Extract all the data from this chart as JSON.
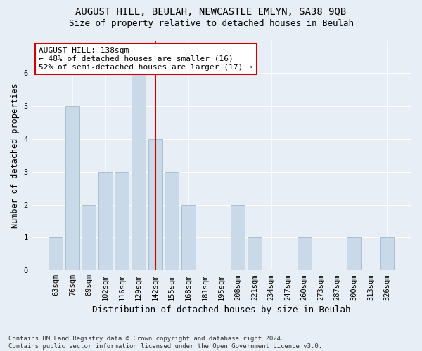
{
  "title1": "AUGUST HILL, BEULAH, NEWCASTLE EMLYN, SA38 9QB",
  "title2": "Size of property relative to detached houses in Beulah",
  "xlabel": "Distribution of detached houses by size in Beulah",
  "ylabel": "Number of detached properties",
  "categories": [
    "63sqm",
    "76sqm",
    "89sqm",
    "102sqm",
    "116sqm",
    "129sqm",
    "142sqm",
    "155sqm",
    "168sqm",
    "181sqm",
    "195sqm",
    "208sqm",
    "221sqm",
    "234sqm",
    "247sqm",
    "260sqm",
    "273sqm",
    "287sqm",
    "300sqm",
    "313sqm",
    "326sqm"
  ],
  "values": [
    1,
    5,
    2,
    3,
    3,
    6,
    4,
    3,
    2,
    0,
    0,
    2,
    1,
    0,
    0,
    1,
    0,
    0,
    1,
    0,
    1
  ],
  "bar_color": "#c9d9e8",
  "bar_edge_color": "#a8bfd0",
  "vline_x_index": 6,
  "vline_color": "#cc0000",
  "annotation_text": "AUGUST HILL: 138sqm\n← 48% of detached houses are smaller (16)\n52% of semi-detached houses are larger (17) →",
  "annotation_box_color": "white",
  "annotation_box_edge_color": "#cc0000",
  "ylim": [
    0,
    7
  ],
  "yticks": [
    0,
    1,
    2,
    3,
    4,
    5,
    6
  ],
  "footnote": "Contains HM Land Registry data © Crown copyright and database right 2024.\nContains public sector information licensed under the Open Government Licence v3.0.",
  "bg_color": "#e8eef5",
  "plot_bg_color": "#e8eef5",
  "title1_fontsize": 10,
  "title2_fontsize": 9,
  "xlabel_fontsize": 9,
  "ylabel_fontsize": 8.5,
  "tick_fontsize": 7.5,
  "annotation_fontsize": 8,
  "footnote_fontsize": 6.5
}
